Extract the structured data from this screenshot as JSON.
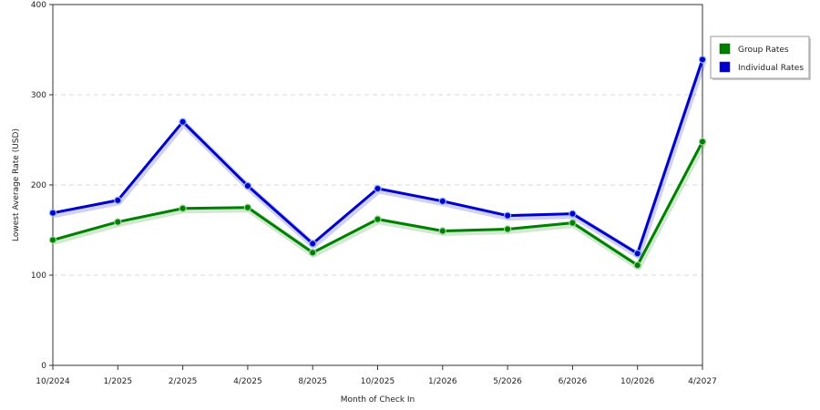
{
  "chart_data": {
    "type": "line",
    "title": "",
    "xlabel": "Month of Check In",
    "ylabel": "Lowest Average Rate (USD)",
    "categories": [
      "10/2024",
      "1/2025",
      "2/2025",
      "4/2025",
      "8/2025",
      "10/2025",
      "1/2026",
      "5/2026",
      "6/2026",
      "10/2026",
      "4/2027"
    ],
    "ylim": [
      0,
      400
    ],
    "yticks": [
      0,
      100,
      200,
      300,
      400
    ],
    "grid": true,
    "legend_position": "right",
    "series": [
      {
        "name": "Group Rates",
        "color": "#008000",
        "values": [
          139,
          159,
          174,
          175,
          125,
          162,
          149,
          151,
          158,
          111,
          248
        ]
      },
      {
        "name": "Individual Rates",
        "color": "#0000cc",
        "values": [
          169,
          183,
          270,
          199,
          135,
          196,
          182,
          166,
          168,
          124,
          339
        ]
      }
    ]
  }
}
